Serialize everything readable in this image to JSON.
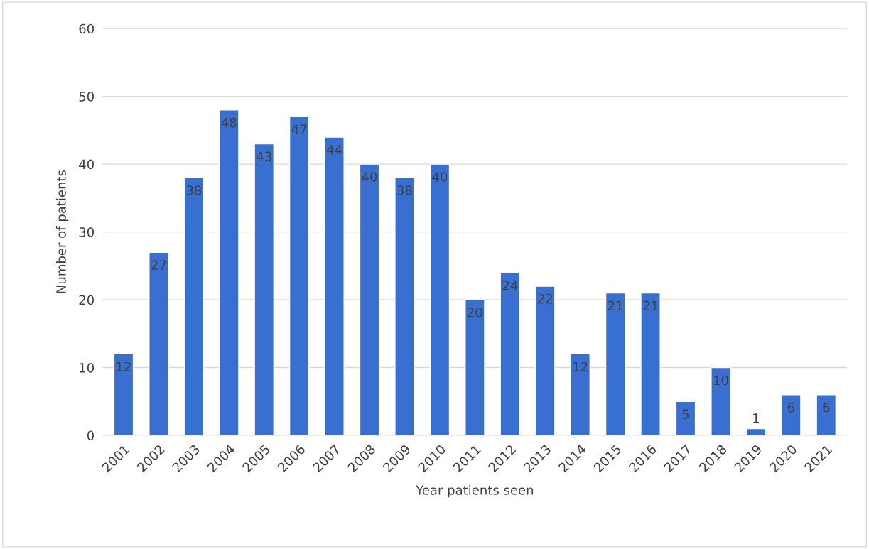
{
  "chart_data": {
    "type": "bar",
    "xlabel": "Year patients seen",
    "ylabel": "Number of patients",
    "categories": [
      "2001",
      "2002",
      "2003",
      "2004",
      "2005",
      "2006",
      "2007",
      "2008",
      "2009",
      "2010",
      "2011",
      "2012",
      "2013",
      "2014",
      "2015",
      "2016",
      "2017",
      "2018",
      "2019",
      "2020",
      "2021"
    ],
    "values": [
      12,
      27,
      38,
      48,
      43,
      47,
      44,
      40,
      38,
      40,
      20,
      24,
      22,
      12,
      21,
      21,
      5,
      10,
      1,
      6,
      6
    ],
    "color": "#3a6fd2",
    "ylim": [
      0,
      60
    ],
    "yticks": [
      0,
      10,
      20,
      30,
      40,
      50,
      60
    ],
    "grid": "y",
    "data_labels": true
  }
}
